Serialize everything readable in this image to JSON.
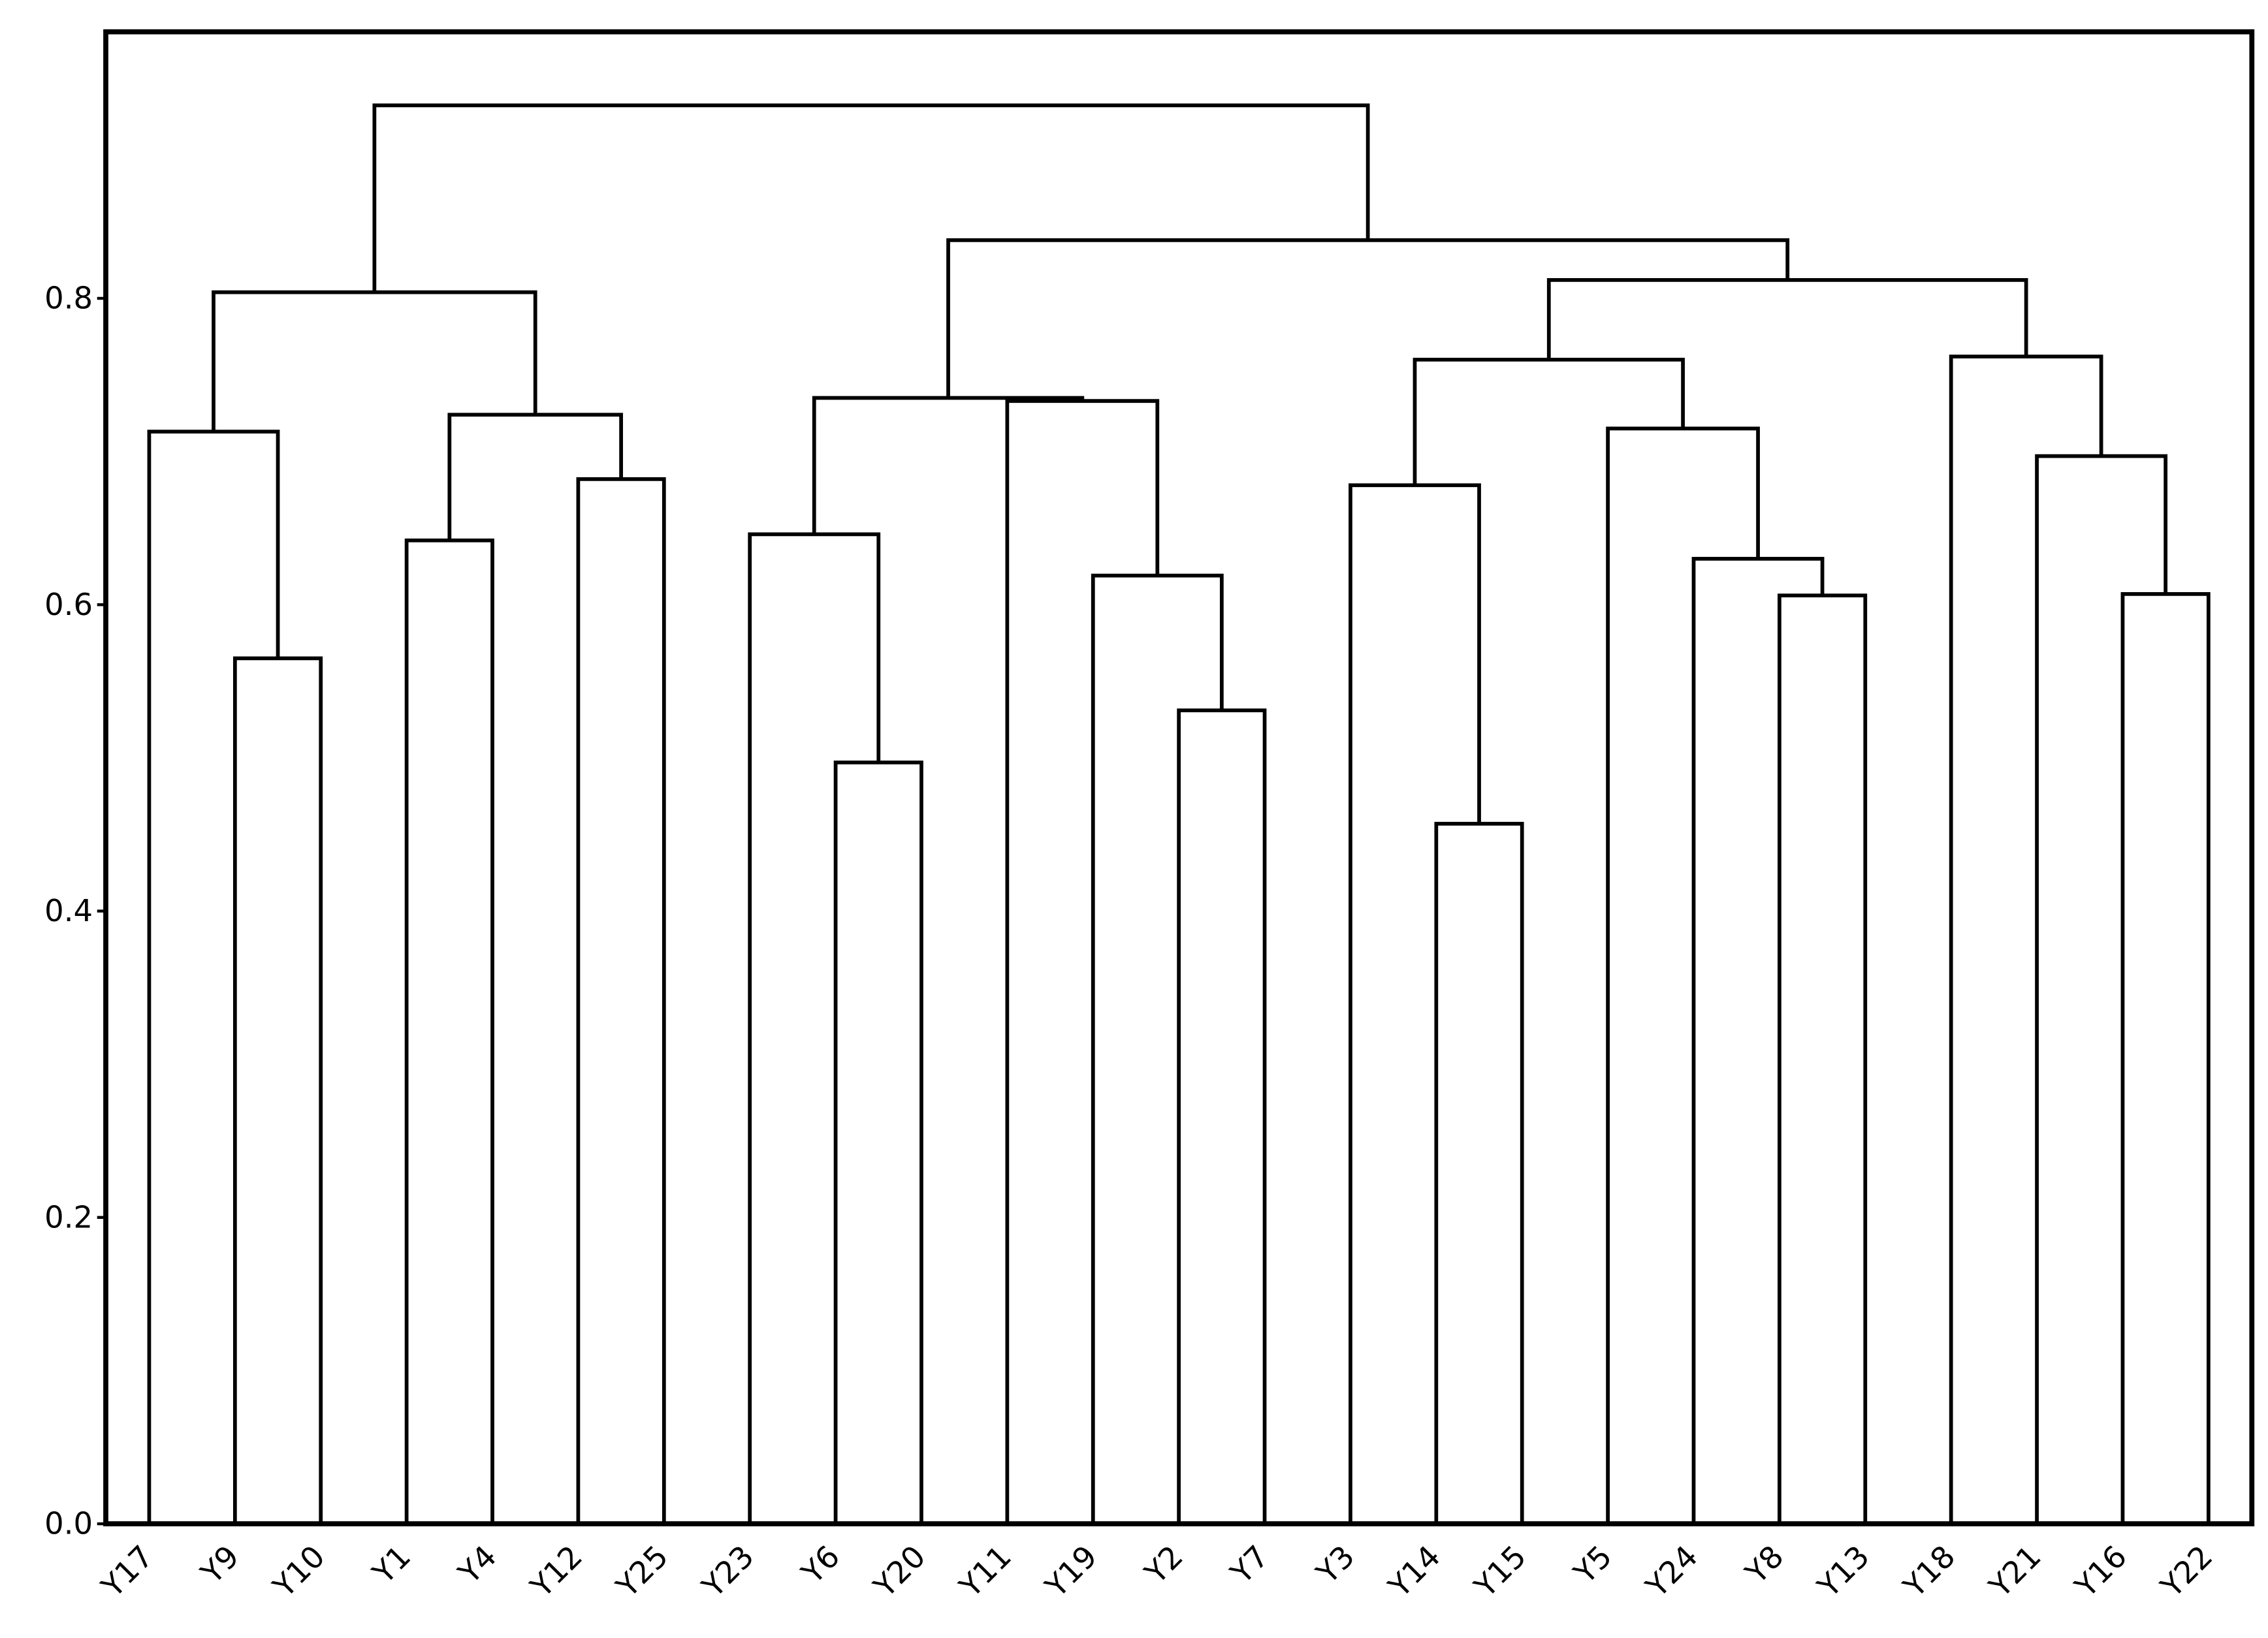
{
  "chart_data": {
    "type": "dendrogram",
    "ylim": [
      0,
      0.974
    ],
    "yticks": [
      {
        "value": 0,
        "label": "0.0"
      },
      0.2,
      0.4,
      0.6,
      0.8
    ],
    "color": "#000000",
    "tree": {
      "height": 0.926,
      "children": [
        {
          "height": 0.804,
          "children": [
            {
              "height": 0.713,
              "children": [
                "Y17",
                {
                  "height": 0.565,
                  "children": [
                    "Y9",
                    "Y10"
                  ]
                }
              ]
            },
            {
              "height": 0.724,
              "children": [
                {
                  "height": 0.642,
                  "children": [
                    "Y1",
                    "Y4"
                  ]
                },
                {
                  "height": 0.682,
                  "children": [
                    "Y12",
                    "Y25"
                  ]
                }
              ]
            }
          ]
        },
        {
          "height": 0.838,
          "children": [
            {
              "height": 0.735,
              "children": [
                {
                  "height": 0.646,
                  "children": [
                    "Y23",
                    {
                      "height": 0.497,
                      "children": [
                        "Y6",
                        "Y20"
                      ]
                    }
                  ]
                },
                {
                  "height": 0.733,
                  "children": [
                    "Y11",
                    {
                      "height": 0.619,
                      "children": [
                        "Y19",
                        {
                          "height": 0.531,
                          "children": [
                            "Y2",
                            "Y7"
                          ]
                        }
                      ]
                    }
                  ]
                }
              ]
            },
            {
              "height": 0.812,
              "children": [
                {
                  "height": 0.76,
                  "children": [
                    {
                      "height": 0.678,
                      "children": [
                        "Y3",
                        {
                          "height": 0.457,
                          "children": [
                            "Y14",
                            "Y15"
                          ]
                        }
                      ]
                    },
                    {
                      "height": 0.715,
                      "children": [
                        "Y5",
                        {
                          "height": 0.63,
                          "children": [
                            "Y24",
                            {
                              "height": 0.606,
                              "children": [
                                "Y8",
                                "Y13"
                              ]
                            }
                          ]
                        }
                      ]
                    }
                  ]
                },
                {
                  "height": 0.762,
                  "children": [
                    "Y18",
                    {
                      "height": 0.697,
                      "children": [
                        "Y21",
                        {
                          "height": 0.607,
                          "children": [
                            "Y16",
                            "Y22"
                          ]
                        }
                      ]
                    }
                  ]
                }
              ]
            }
          ]
        }
      ]
    }
  }
}
